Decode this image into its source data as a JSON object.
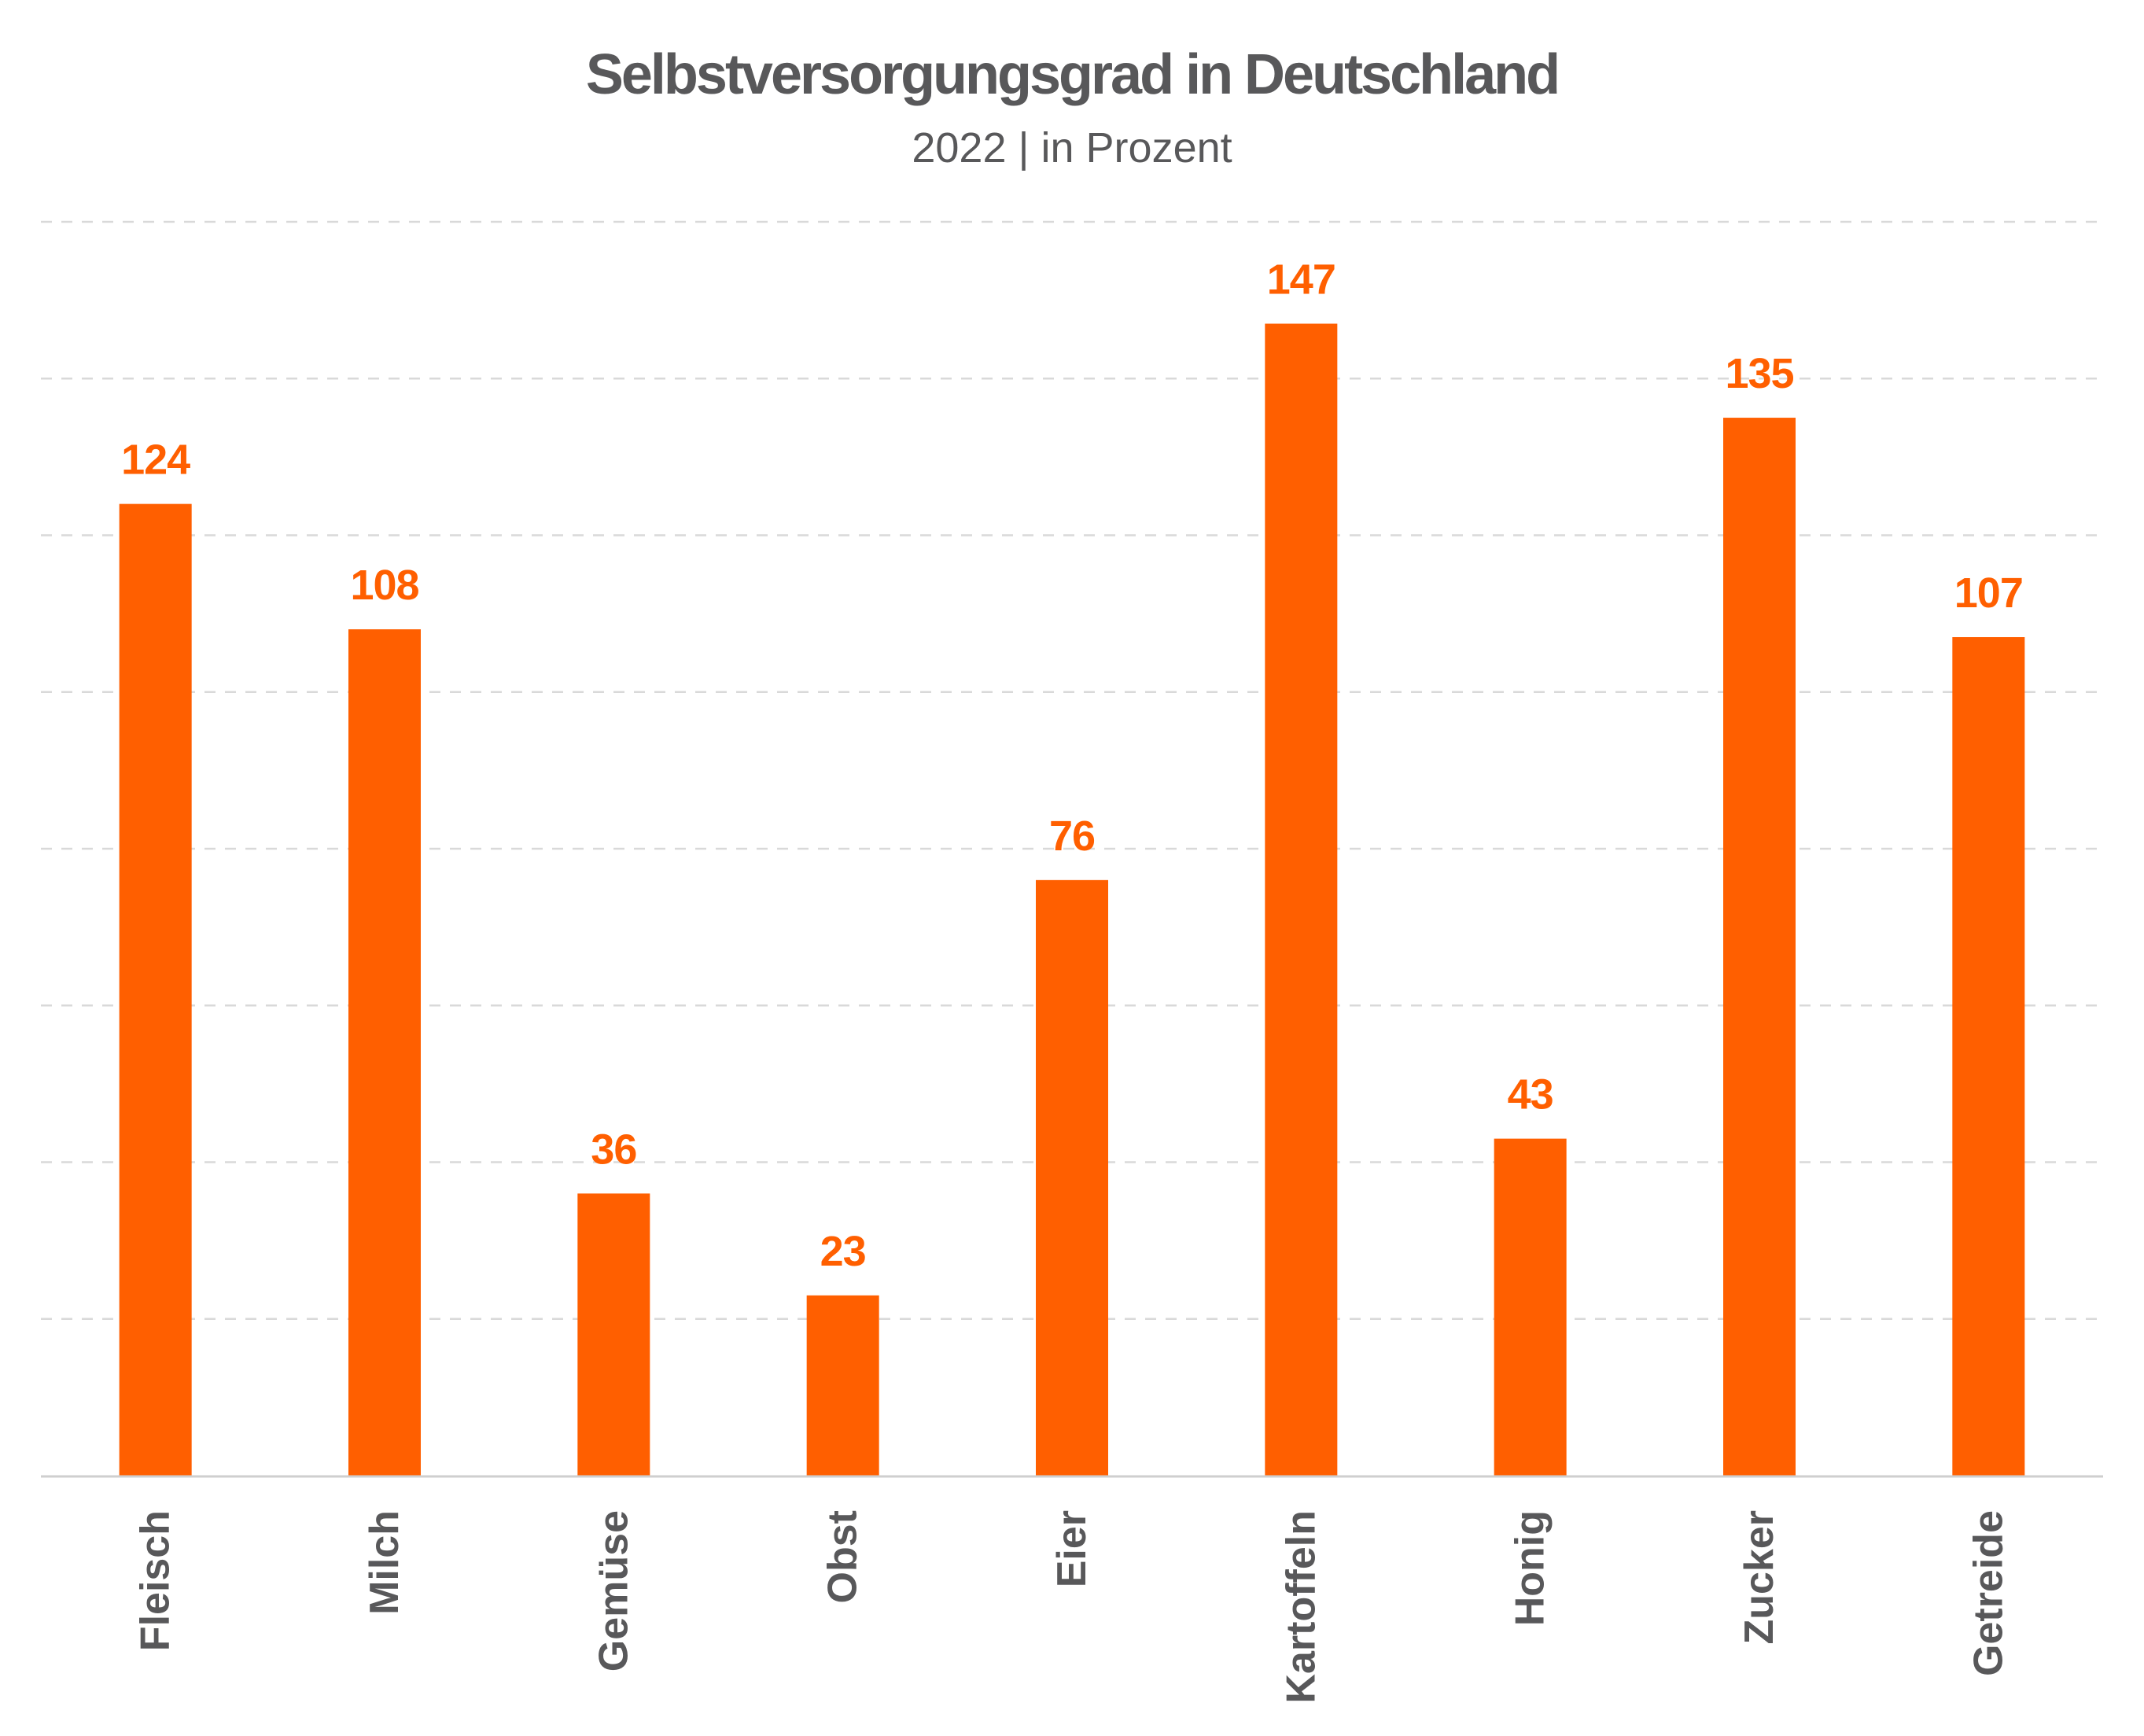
{
  "chart_data": {
    "type": "bar",
    "title": "Selbstversorgungsgrad in Deutschland",
    "subtitle": "2022 | in Prozent",
    "categories": [
      "Fleisch",
      "Milch",
      "Gemüse",
      "Obst",
      "Eier",
      "Kartoffeln",
      "Honig",
      "Zucker",
      "Getreide"
    ],
    "values": [
      124,
      108,
      36,
      23,
      76,
      147,
      43,
      135,
      107
    ],
    "ylim": [
      0,
      160
    ],
    "grid": true,
    "bar_color": "#ff5f00",
    "label_color": "#58585a",
    "gridline_color": "#d9d9d9",
    "axis_color": "#cfcfcf"
  }
}
